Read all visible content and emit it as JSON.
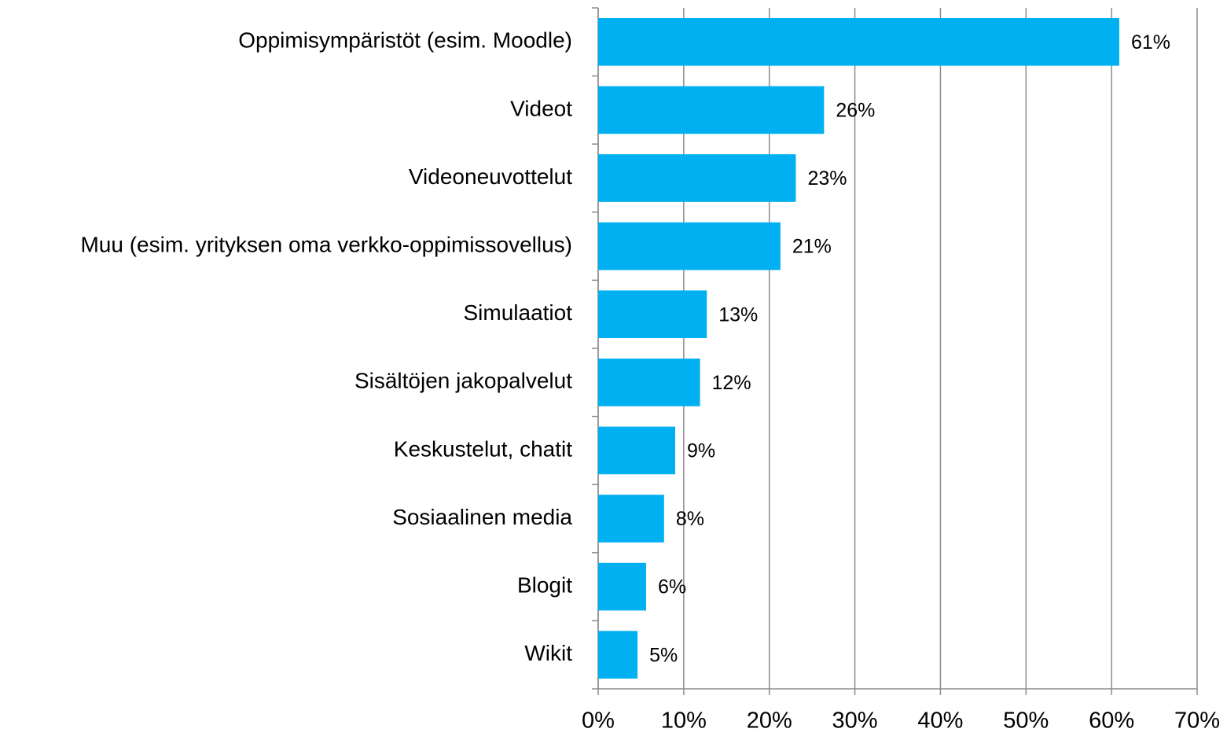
{
  "chart_data": {
    "type": "hbar",
    "categories": [
      "Oppimisympäristöt (esim. Moodle)",
      "Videot",
      "Videoneuvottelut",
      "Muu (esim. yrityksen oma verkko-oppimissovellus)",
      "Simulaatiot",
      "Sisältöjen jakopalvelut",
      "Keskustelut, chatit",
      "Sosiaalinen media",
      "Blogit",
      "Wikit"
    ],
    "values": [
      60.9,
      26.4,
      23.1,
      21.3,
      12.7,
      11.9,
      9.0,
      7.7,
      5.6,
      4.6
    ],
    "value_labels": [
      "61%",
      "26%",
      "23%",
      "21%",
      "13%",
      "12%",
      "9%",
      "8%",
      "6%",
      "5%"
    ],
    "color": "#00b0f0",
    "xlim": [
      0,
      70
    ],
    "xticks": [
      {
        "value": 0,
        "label": "0%"
      },
      {
        "value": 10,
        "label": "10%"
      },
      {
        "value": 20,
        "label": "20%"
      },
      {
        "value": 30,
        "label": "30%"
      },
      {
        "value": 40,
        "label": "40%"
      },
      {
        "value": 50,
        "label": "50%"
      },
      {
        "value": 60,
        "label": "60%"
      },
      {
        "value": 70,
        "label": "70%"
      }
    ],
    "grid": true
  }
}
